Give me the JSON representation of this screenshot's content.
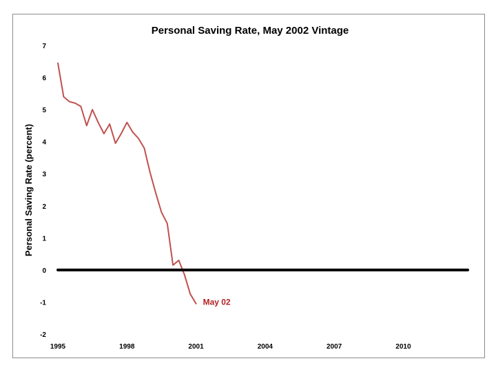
{
  "chart_data": {
    "type": "line",
    "title": "Personal Saving Rate, May 2002 Vintage",
    "xlabel": "",
    "ylabel": "Personal Saving Rate (percent)",
    "xlim": [
      1995,
      2012.8
    ],
    "ylim": [
      -2,
      7
    ],
    "x_ticks": [
      1995,
      1998,
      2001,
      2004,
      2007,
      2010
    ],
    "y_ticks": [
      7,
      6,
      5,
      4,
      3,
      2,
      1,
      0,
      -1,
      -2
    ],
    "grid": false,
    "legend": "none",
    "series": [
      {
        "color": "#c0504d",
        "x": [
          1995.0,
          1995.25,
          1995.5,
          1995.75,
          1996.0,
          1996.25,
          1996.5,
          1996.75,
          1997.0,
          1997.25,
          1997.5,
          1997.75,
          1998.0,
          1998.25,
          1998.5,
          1998.75,
          1999.0,
          1999.25,
          1999.5,
          1999.75,
          2000.0,
          2000.25,
          2000.5,
          2000.75,
          2001.0
        ],
        "y": [
          6.45,
          5.4,
          5.25,
          5.2,
          5.1,
          4.5,
          5.0,
          4.6,
          4.25,
          4.55,
          3.95,
          4.25,
          4.6,
          4.3,
          4.1,
          3.8,
          3.05,
          2.4,
          1.8,
          1.45,
          0.15,
          0.3,
          -0.15,
          -0.75,
          -1.05
        ]
      },
      {
        "color": "#000000",
        "x": [
          1995.0,
          2012.8
        ],
        "y": [
          0,
          0
        ]
      }
    ],
    "annotations": [
      {
        "text": "May 02",
        "x": 2001.3,
        "y": -1.0,
        "color": "#b22222"
      }
    ]
  }
}
